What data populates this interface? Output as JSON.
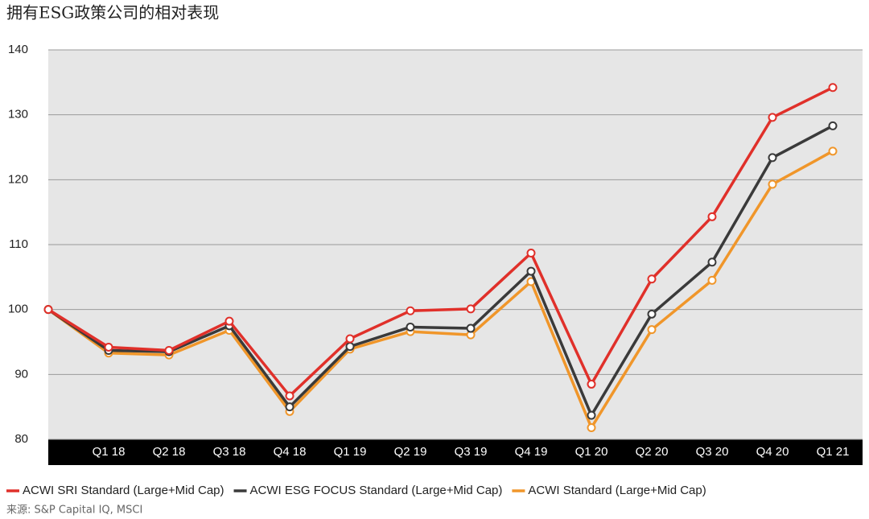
{
  "chart_data": {
    "type": "line",
    "title": "拥有ESG政策公司的相对表现",
    "categories": [
      null,
      "Q1 18",
      "Q2 18",
      "Q3 18",
      "Q4 18",
      "Q1 19",
      "Q2 19",
      "Q3 19",
      "Q4 19",
      "Q1 20",
      "Q2 20",
      "Q3 20",
      "Q4 20",
      "Q1 21"
    ],
    "series": [
      {
        "name": "ACWI SRI Standard (Large+Mid Cap)",
        "color": "#e0302a",
        "values": [
          100,
          94.2,
          93.7,
          98.2,
          86.7,
          95.5,
          99.8,
          100.1,
          108.7,
          88.5,
          104.7,
          114.3,
          129.6,
          134.2
        ]
      },
      {
        "name": "ACWI ESG FOCUS Standard (Large+Mid Cap)",
        "color": "#3a3a3a",
        "values": [
          100,
          93.7,
          93.5,
          97.5,
          85.0,
          94.3,
          97.3,
          97.1,
          105.9,
          83.7,
          99.3,
          107.3,
          123.4,
          128.3
        ]
      },
      {
        "name": "ACWI Standard (Large+Mid Cap)",
        "color": "#f0962a",
        "values": [
          100,
          93.3,
          93.0,
          96.8,
          84.3,
          93.9,
          96.6,
          96.1,
          104.3,
          81.8,
          96.9,
          104.5,
          119.3,
          124.4
        ]
      }
    ],
    "ylim": [
      80,
      140
    ],
    "yticks": [
      80,
      90,
      100,
      110,
      120,
      130,
      140
    ],
    "grid": true,
    "legend": "bottom",
    "source": "来源: S&P Capital IQ, MSCI"
  }
}
